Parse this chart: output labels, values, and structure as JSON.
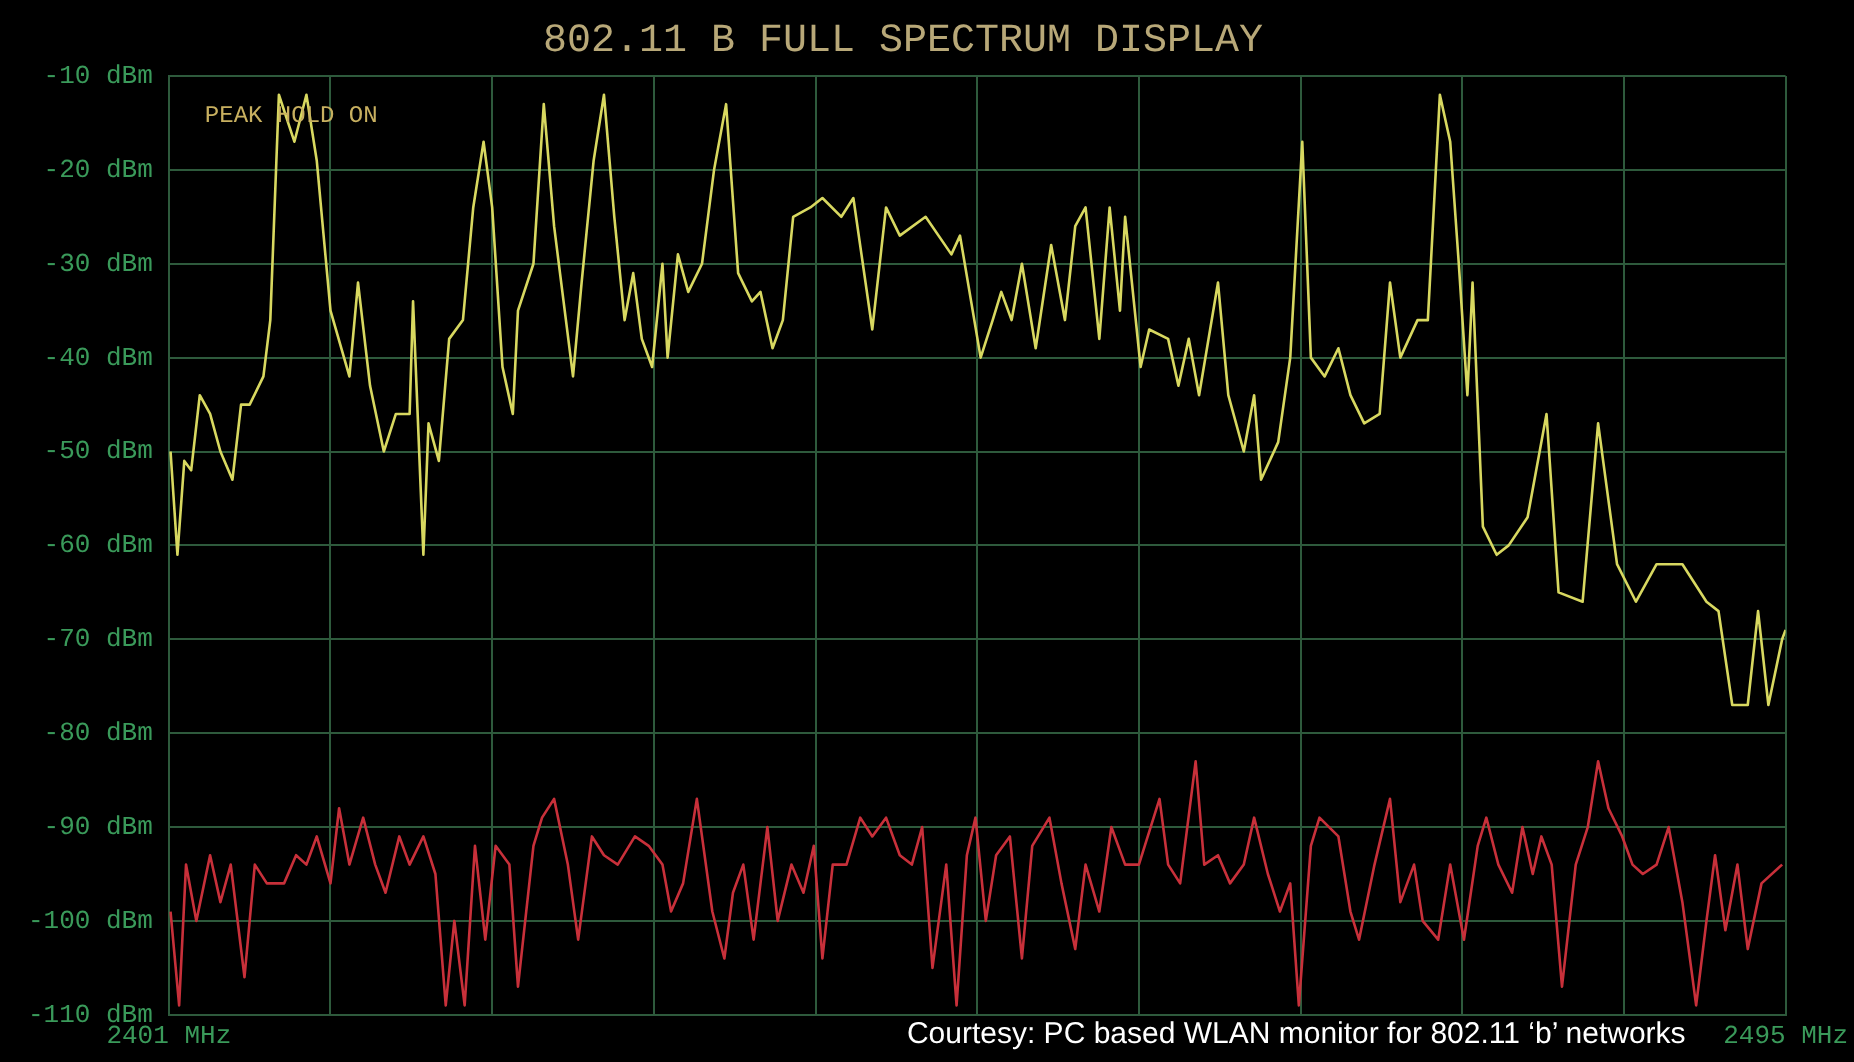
{
  "chart_data": {
    "type": "line",
    "title": "802.11 B FULL SPECTRUM DISPLAY",
    "annotations": [
      "PEAK HOLD ON",
      "Courtesy: PC based WLAN monitor for 802.11 ‘b’ networks"
    ],
    "xlim": [
      2401,
      2495
    ],
    "xticks": [
      {
        "value": 2401,
        "label": "2401 MHz"
      },
      {
        "value": 2410.4,
        "label": null
      },
      {
        "value": 2419.8,
        "label": null
      },
      {
        "value": 2429.2,
        "label": null
      },
      {
        "value": 2438.6,
        "label": null
      },
      {
        "value": 2448,
        "label": null
      },
      {
        "value": 2457.4,
        "label": null
      },
      {
        "value": 2466.8,
        "label": null
      },
      {
        "value": 2476.2,
        "label": null
      },
      {
        "value": 2485.6,
        "label": null
      },
      {
        "value": 2495,
        "label": "2495 MHz"
      }
    ],
    "ylim": [
      -110,
      -10
    ],
    "yticks": [
      {
        "value": -110,
        "label": "-110 dBm"
      },
      {
        "value": -100,
        "label": "-100 dBm"
      },
      {
        "value": -90,
        "label": "-90 dBm"
      },
      {
        "value": -80,
        "label": "-80 dBm"
      },
      {
        "value": -70,
        "label": "-70 dBm"
      },
      {
        "value": -60,
        "label": "-60 dBm"
      },
      {
        "value": -50,
        "label": "-50 dBm"
      },
      {
        "value": -40,
        "label": "-40 dBm"
      },
      {
        "value": -30,
        "label": "-30 dBm"
      },
      {
        "value": -20,
        "label": "-20 dBm"
      },
      {
        "value": -10,
        "label": "-10 dBm"
      }
    ],
    "grid": true,
    "legend": false,
    "marker": "none",
    "line_style": "solid",
    "series": [
      {
        "color": "#d8d860",
        "x": [
          2401.1,
          2401.5,
          2401.9,
          2402.3,
          2402.8,
          2403.4,
          2404.0,
          2404.7,
          2405.2,
          2405.7,
          2406.5,
          2406.9,
          2407.4,
          2408.3,
          2409.0,
          2409.6,
          2410.4,
          2411.5,
          2412.0,
          2412.7,
          2413.5,
          2414.2,
          2415.0,
          2415.2,
          2415.8,
          2416.1,
          2416.7,
          2417.3,
          2418.1,
          2418.7,
          2419.3,
          2419.8,
          2420.4,
          2421.0,
          2421.3,
          2422.2,
          2422.8,
          2423.4,
          2424.5,
          2425.0,
          2425.7,
          2426.3,
          2426.9,
          2427.5,
          2428.0,
          2428.5,
          2429.1,
          2429.7,
          2430.0,
          2430.6,
          2431.2,
          2432.0,
          2432.7,
          2433.4,
          2434.1,
          2434.9,
          2435.4,
          2436.1,
          2436.7,
          2437.3,
          2438.3,
          2439.0,
          2440.1,
          2440.8,
          2441.9,
          2442.7,
          2443.5,
          2445.0,
          2446.5,
          2447.0,
          2448.2,
          2448.9,
          2449.4,
          2450.0,
          2450.6,
          2451.4,
          2452.3,
          2453.1,
          2453.7,
          2454.3,
          2455.1,
          2455.7,
          2456.3,
          2456.6,
          2457.5,
          2458.0,
          2459.1,
          2459.7,
          2460.3,
          2460.9,
          2462.0,
          2462.6,
          2463.5,
          2464.1,
          2464.5,
          2465.5,
          2466.2,
          2466.9,
          2467.4,
          2468.2,
          2469.0,
          2469.7,
          2470.5,
          2471.4,
          2472.0,
          2472.6,
          2473.6,
          2474.2,
          2474.9,
          2475.5,
          2476.0,
          2476.5,
          2476.8,
          2477.4,
          2478.2,
          2478.9,
          2480.0,
          2481.1,
          2481.8,
          2483.2,
          2484.1,
          2485.2,
          2486.3,
          2487.5,
          2489.0,
          2490.4,
          2491.1,
          2491.9,
          2492.8,
          2493.4,
          2494.0,
          2494.8,
          2495
        ],
        "values": [
          -50,
          -61,
          -51,
          -52,
          -44,
          -46,
          -50,
          -53,
          -45,
          -45,
          -42,
          -36,
          -12,
          -17,
          -12,
          -19,
          -35,
          -42,
          -32,
          -43,
          -50,
          -46,
          -46,
          -34,
          -61,
          -47,
          -51,
          -38,
          -36,
          -24,
          -17,
          -24,
          -41,
          -46,
          -35,
          -30,
          -13,
          -26,
          -42,
          -32,
          -19,
          -12,
          -25,
          -36,
          -31,
          -38,
          -41,
          -30,
          -40,
          -29,
          -33,
          -30,
          -20,
          -13,
          -31,
          -34,
          -33,
          -39,
          -36,
          -25,
          -24,
          -23,
          -25,
          -23,
          -37,
          -24,
          -27,
          -25,
          -29,
          -27,
          -40,
          -36,
          -33,
          -36,
          -30,
          -39,
          -28,
          -36,
          -26,
          -24,
          -38,
          -24,
          -35,
          -25,
          -41,
          -37,
          -38,
          -43,
          -38,
          -44,
          -32,
          -44,
          -50,
          -44,
          -53,
          -49,
          -40,
          -17,
          -40,
          -42,
          -39,
          -44,
          -47,
          -46,
          -32,
          -40,
          -36,
          -36,
          -12,
          -17,
          -30,
          -44,
          -32,
          -58,
          -61,
          -60,
          -57,
          -46,
          -65,
          -66,
          -47,
          -62,
          -66,
          -62,
          -62,
          -66,
          -67,
          -77,
          -77,
          -67,
          -77,
          -70,
          -69
        ]
      },
      {
        "color": "#c8303a",
        "x": [
          2401.1,
          2401.6,
          2402.0,
          2402.6,
          2403.4,
          2404.0,
          2404.6,
          2405.4,
          2406.0,
          2406.7,
          2407.7,
          2408.4,
          2409.0,
          2409.6,
          2410.4,
          2410.9,
          2411.5,
          2412.3,
          2413.0,
          2413.6,
          2414.4,
          2415.0,
          2415.8,
          2416.5,
          2417.1,
          2417.6,
          2418.2,
          2418.8,
          2419.4,
          2420.0,
          2420.8,
          2421.3,
          2422.2,
          2422.7,
          2423.4,
          2424.2,
          2424.8,
          2425.6,
          2426.3,
          2427.1,
          2428.1,
          2428.9,
          2429.7,
          2430.2,
          2430.9,
          2431.7,
          2432.6,
          2433.3,
          2433.8,
          2434.4,
          2435.0,
          2435.8,
          2436.4,
          2437.2,
          2437.9,
          2438.5,
          2439.0,
          2439.6,
          2440.4,
          2441.2,
          2441.9,
          2442.7,
          2443.5,
          2444.2,
          2444.8,
          2445.4,
          2446.2,
          2446.8,
          2447.4,
          2447.9,
          2448.5,
          2449.1,
          2449.9,
          2450.6,
          2451.2,
          2452.2,
          2452.9,
          2453.7,
          2454.3,
          2455.1,
          2455.8,
          2456.6,
          2457.4,
          2458.6,
          2459.1,
          2459.8,
          2460.7,
          2461.2,
          2462.0,
          2462.7,
          2463.5,
          2464.1,
          2464.9,
          2465.6,
          2466.2,
          2466.7,
          2467.4,
          2467.9,
          2469.0,
          2469.7,
          2470.2,
          2471.1,
          2472.0,
          2472.6,
          2473.4,
          2473.9,
          2474.8,
          2475.5,
          2476.3,
          2477.1,
          2477.6,
          2478.3,
          2479.1,
          2479.7,
          2480.3,
          2480.8,
          2481.4,
          2482.0,
          2482.8,
          2483.5,
          2484.1,
          2484.7,
          2485.5,
          2486.1,
          2486.7,
          2487.5,
          2488.2,
          2489.0,
          2489.8,
          2490.4,
          2490.9,
          2491.5,
          2492.2,
          2492.8,
          2493.6,
          2494.8
        ],
        "values": [
          -99,
          -109,
          -94,
          -100,
          -93,
          -98,
          -94,
          -106,
          -94,
          -96,
          -96,
          -93,
          -94,
          -91,
          -96,
          -88,
          -94,
          -89,
          -94,
          -97,
          -91,
          -94,
          -91,
          -95,
          -109,
          -100,
          -109,
          -92,
          -102,
          -92,
          -94,
          -107,
          -92,
          -89,
          -87,
          -94,
          -102,
          -91,
          -93,
          -94,
          -91,
          -92,
          -94,
          -99,
          -96,
          -87,
          -99,
          -104,
          -97,
          -94,
          -102,
          -90,
          -100,
          -94,
          -97,
          -92,
          -104,
          -94,
          -94,
          -89,
          -91,
          -89,
          -93,
          -94,
          -90,
          -105,
          -94,
          -109,
          -93,
          -89,
          -100,
          -93,
          -91,
          -104,
          -92,
          -89,
          -96,
          -103,
          -94,
          -99,
          -90,
          -94,
          -94,
          -87,
          -94,
          -96,
          -83,
          -94,
          -93,
          -96,
          -94,
          -89,
          -95,
          -99,
          -96,
          -109,
          -92,
          -89,
          -91,
          -99,
          -102,
          -94,
          -87,
          -98,
          -94,
          -100,
          -102,
          -94,
          -102,
          -92,
          -89,
          -94,
          -97,
          -90,
          -95,
          -91,
          -94,
          -107,
          -94,
          -90,
          -83,
          -88,
          -91,
          -94,
          -95,
          -94,
          -90,
          -98,
          -109,
          -100,
          -93,
          -101,
          -94,
          -103,
          -96,
          -94
        ]
      }
    ]
  }
}
